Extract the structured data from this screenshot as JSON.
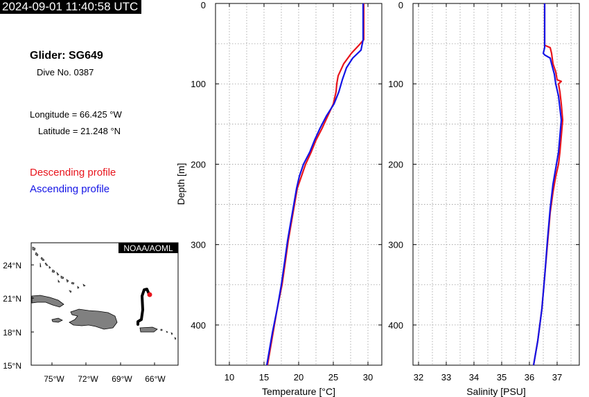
{
  "timestamp": "2024-09-01 11:40:58 UTC",
  "glider": {
    "title": "Glider: SG649",
    "dive": "Dive No. 0387"
  },
  "position": {
    "longitude": "Longitude = 66.425 °W",
    "latitude": "Latitude = 21.248 °N"
  },
  "legend": {
    "descending": {
      "label": "Descending profile",
      "color": "#e8141c"
    },
    "ascending": {
      "label": "Ascending profile",
      "color": "#1414e6"
    }
  },
  "map": {
    "badge": "NOAA/AOML",
    "lon_ticks": [
      "75°W",
      "72°W",
      "69°W",
      "66°W"
    ],
    "lat_ticks": [
      "24°N",
      "21°N",
      "18°N",
      "15°N"
    ],
    "land_color": "#808080",
    "track_color": "#000000",
    "current_position_color": "#e8141c"
  },
  "chart_data": [
    {
      "type": "line",
      "title": "",
      "xlabel": "Temperature [°C]",
      "ylabel": "Depth [m]",
      "xlim": [
        8,
        32
      ],
      "ylim": [
        450,
        0
      ],
      "y_reversed": true,
      "grid": true,
      "x_ticks": [
        10,
        15,
        20,
        25,
        30
      ],
      "y_ticks": [
        0,
        100,
        200,
        300,
        400
      ],
      "series": [
        {
          "name": "Descending profile",
          "color": "#e8141c",
          "points": [
            [
              29.4,
              0
            ],
            [
              29.4,
              20
            ],
            [
              29.4,
              45
            ],
            [
              28.7,
              52
            ],
            [
              27.6,
              62
            ],
            [
              26.5,
              75
            ],
            [
              25.7,
              90
            ],
            [
              25.5,
              100
            ],
            [
              25.4,
              110
            ],
            [
              25.0,
              125
            ],
            [
              24.2,
              140
            ],
            [
              23.4,
              155
            ],
            [
              22.5,
              170
            ],
            [
              21.8,
              185
            ],
            [
              21.0,
              200
            ],
            [
              20.4,
              215
            ],
            [
              19.8,
              230
            ],
            [
              19.3,
              255
            ],
            [
              18.9,
              275
            ],
            [
              18.5,
              295
            ],
            [
              18.1,
              320
            ],
            [
              17.6,
              350
            ],
            [
              16.9,
              380
            ],
            [
              16.3,
              410
            ],
            [
              15.9,
              430
            ],
            [
              15.5,
              450
            ]
          ]
        },
        {
          "name": "Ascending profile",
          "color": "#1414e6",
          "points": [
            [
              29.3,
              0
            ],
            [
              29.3,
              20
            ],
            [
              29.3,
              45
            ],
            [
              29.0,
              58
            ],
            [
              27.8,
              68
            ],
            [
              26.9,
              80
            ],
            [
              26.3,
              95
            ],
            [
              25.8,
              110
            ],
            [
              25.1,
              125
            ],
            [
              24.0,
              140
            ],
            [
              23.1,
              155
            ],
            [
              22.3,
              170
            ],
            [
              21.6,
              185
            ],
            [
              20.7,
              200
            ],
            [
              20.1,
              215
            ],
            [
              19.7,
              230
            ],
            [
              19.2,
              255
            ],
            [
              18.8,
              275
            ],
            [
              18.4,
              295
            ],
            [
              18.0,
              320
            ],
            [
              17.5,
              350
            ],
            [
              16.9,
              380
            ],
            [
              16.2,
              410
            ],
            [
              15.8,
              430
            ],
            [
              15.4,
              450
            ]
          ]
        }
      ]
    },
    {
      "type": "line",
      "title": "",
      "xlabel": "Salinity [PSU]",
      "ylabel": "",
      "xlim": [
        31.8,
        37.8
      ],
      "ylim": [
        450,
        0
      ],
      "y_reversed": true,
      "grid": true,
      "x_ticks": [
        32,
        33,
        34,
        35,
        36,
        37
      ],
      "y_ticks": [
        0,
        100,
        200,
        300,
        400
      ],
      "series": [
        {
          "name": "Descending profile",
          "color": "#e8141c",
          "points": [
            [
              36.55,
              0
            ],
            [
              36.55,
              30
            ],
            [
              36.55,
              52
            ],
            [
              36.75,
              55
            ],
            [
              36.8,
              62
            ],
            [
              36.85,
              75
            ],
            [
              36.95,
              85
            ],
            [
              37.0,
              95
            ],
            [
              37.15,
              97
            ],
            [
              37.05,
              100
            ],
            [
              37.1,
              110
            ],
            [
              37.15,
              125
            ],
            [
              37.2,
              145
            ],
            [
              37.15,
              165
            ],
            [
              37.1,
              185
            ],
            [
              37.05,
              200
            ],
            [
              36.95,
              215
            ],
            [
              36.85,
              235
            ],
            [
              36.75,
              260
            ],
            [
              36.65,
              300
            ],
            [
              36.55,
              340
            ],
            [
              36.45,
              380
            ],
            [
              36.3,
              420
            ],
            [
              36.15,
              450
            ]
          ]
        },
        {
          "name": "Ascending profile",
          "color": "#1414e6",
          "points": [
            [
              36.55,
              0
            ],
            [
              36.55,
              30
            ],
            [
              36.55,
              55
            ],
            [
              36.5,
              62
            ],
            [
              36.55,
              64
            ],
            [
              36.75,
              68
            ],
            [
              36.8,
              75
            ],
            [
              36.9,
              88
            ],
            [
              36.95,
              100
            ],
            [
              37.05,
              115
            ],
            [
              37.1,
              130
            ],
            [
              37.15,
              145
            ],
            [
              37.1,
              165
            ],
            [
              37.05,
              185
            ],
            [
              36.95,
              205
            ],
            [
              36.85,
              225
            ],
            [
              36.75,
              255
            ],
            [
              36.65,
              295
            ],
            [
              36.55,
              340
            ],
            [
              36.45,
              380
            ],
            [
              36.3,
              420
            ],
            [
              36.15,
              450
            ]
          ]
        }
      ]
    }
  ]
}
